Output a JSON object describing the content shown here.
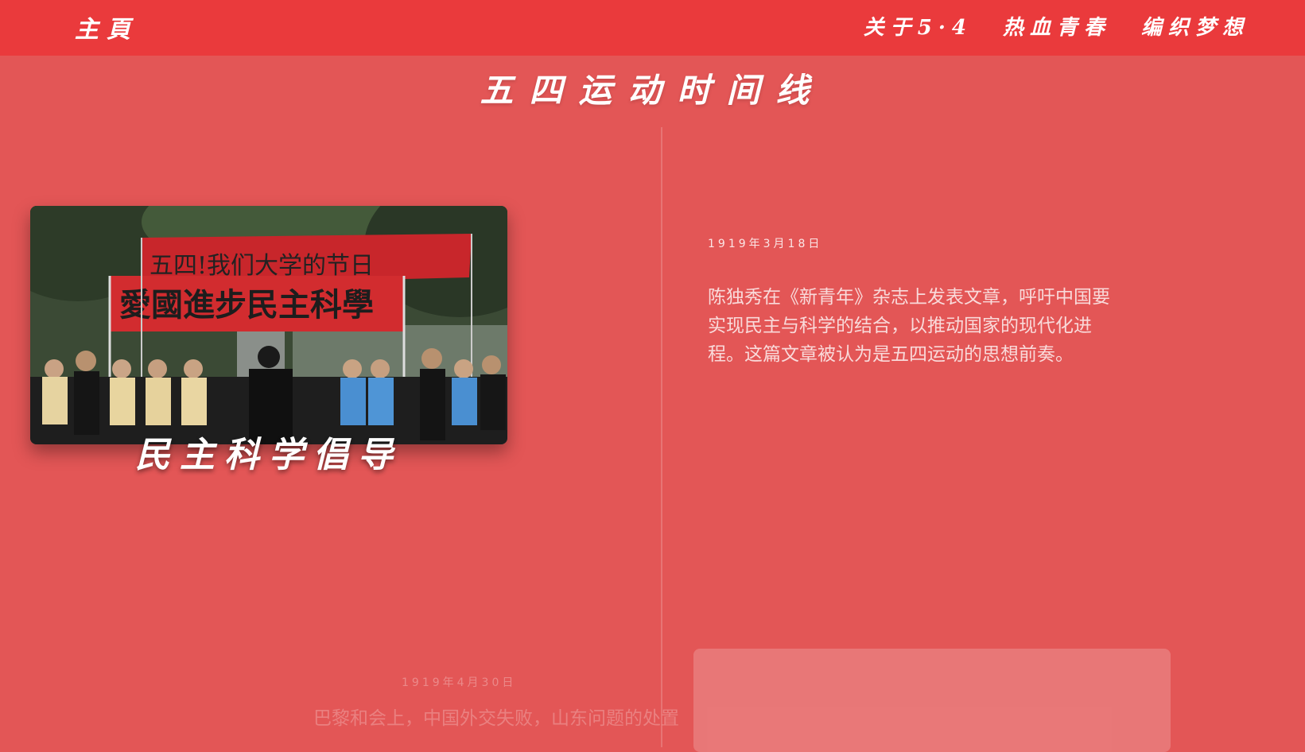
{
  "header": {
    "brand": "主頁",
    "nav": [
      {
        "label": "关于5·4"
      },
      {
        "label": "热血青春"
      },
      {
        "label": "编织梦想"
      }
    ]
  },
  "page_title": "五四运动时间线",
  "timeline": [
    {
      "caption": "民主科学倡导",
      "banner_top": "五四!我们大学的节日",
      "banner_main": "愛國進步民主科學",
      "date": "1919年3月18日",
      "text": "陈独秀在《新青年》杂志上发表文章，呼吁中国要实现民主与科学的结合，以推动国家的现代化进程。这篇文章被认为是五四运动的思想前奏。"
    },
    {
      "date": "1919年4月30日",
      "text": "巴黎和会上，中国外交失败，山东问题的处置"
    }
  ],
  "colors": {
    "background": "#e35656",
    "topbar": "#ea3a3c"
  }
}
